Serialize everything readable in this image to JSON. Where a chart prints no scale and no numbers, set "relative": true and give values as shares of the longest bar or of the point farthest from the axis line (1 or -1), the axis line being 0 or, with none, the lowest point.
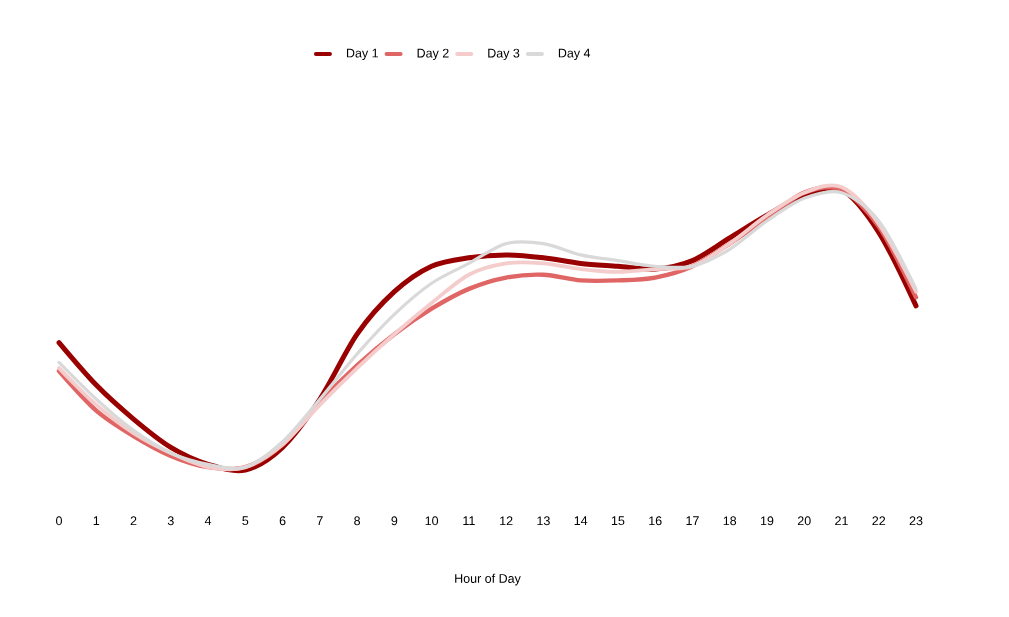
{
  "chart_data": {
    "type": "line",
    "xlabel": "Hour of Day",
    "relative": true,
    "legend": "top",
    "categories": [
      "0",
      "1",
      "2",
      "3",
      "4",
      "5",
      "6",
      "7",
      "8",
      "9",
      "10",
      "11",
      "12",
      "13",
      "14",
      "15",
      "16",
      "17",
      "18",
      "19",
      "20",
      "21",
      "22",
      "23"
    ],
    "series": [
      {
        "name": "Day 1",
        "color": "#990000",
        "values": [
          0.45,
          0.3,
          0.18,
          0.08,
          0.02,
          0,
          0.08,
          0.25,
          0.48,
          0.63,
          0.72,
          0.75,
          0.76,
          0.75,
          0.73,
          0.72,
          0.71,
          0.74,
          0.82,
          0.9,
          0.97,
          0.99,
          0.84,
          0.58
        ]
      },
      {
        "name": "Day 2",
        "color": "#e06666",
        "values": [
          0.35,
          0.21,
          0.12,
          0.05,
          0.01,
          0.01,
          0.09,
          0.24,
          0.37,
          0.48,
          0.57,
          0.64,
          0.68,
          0.69,
          0.67,
          0.67,
          0.68,
          0.72,
          0.8,
          0.89,
          0.98,
          0.99,
          0.86,
          0.61
        ]
      },
      {
        "name": "Day 3",
        "color": "#f4cccc",
        "values": [
          0.36,
          0.23,
          0.13,
          0.06,
          0.01,
          0.01,
          0.09,
          0.23,
          0.36,
          0.48,
          0.59,
          0.69,
          0.73,
          0.73,
          0.71,
          0.7,
          0.71,
          0.72,
          0.8,
          0.9,
          0.98,
          1,
          0.87,
          0.63
        ]
      },
      {
        "name": "Day 4",
        "color": "#d9d9d9",
        "values": [
          0.38,
          0.25,
          0.14,
          0.06,
          0.02,
          0.01,
          0.1,
          0.25,
          0.41,
          0.55,
          0.66,
          0.73,
          0.8,
          0.8,
          0.76,
          0.74,
          0.72,
          0.72,
          0.78,
          0.88,
          0.96,
          0.98,
          0.88,
          0.64
        ]
      }
    ]
  }
}
